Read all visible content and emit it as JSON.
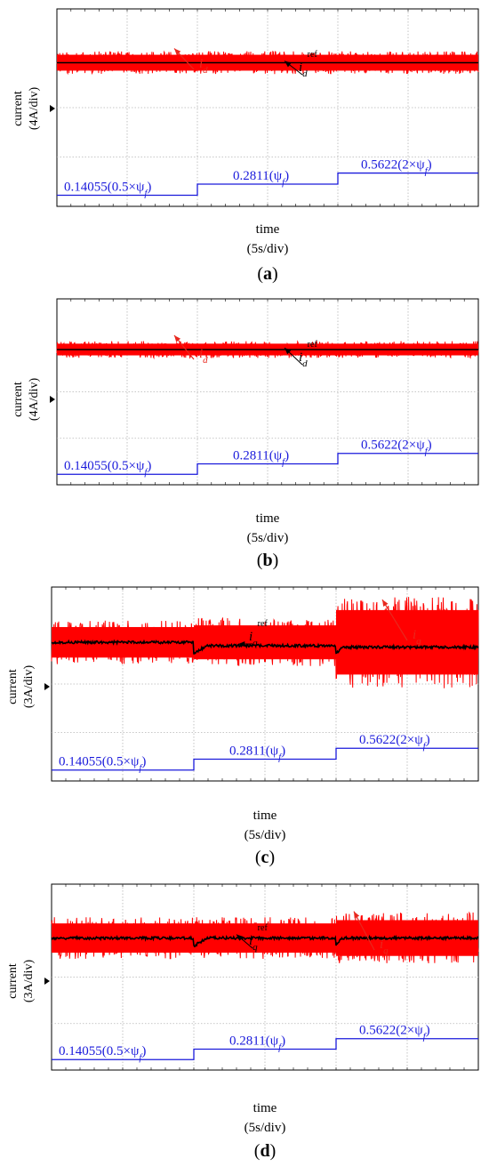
{
  "chart_data": [
    {
      "type": "line",
      "panel_label": "(a)",
      "panel_letter": "a",
      "ylabel": "current",
      "yscale": "(4A/div)",
      "xlabel": "time",
      "xscale": "(5s/div)",
      "series": [
        {
          "name": "id",
          "color": "#ff0000",
          "mean_div": 5.82,
          "noise_div": 0.23,
          "segments_noise_div": [
            0.23,
            0.23,
            0.23
          ]
        },
        {
          "name": "idref",
          "color": "#000000",
          "mean_div": 5.82,
          "dip": false
        }
      ],
      "flux_levels": [
        {
          "value": "0.14055",
          "paren": "(0.5×ψ",
          "sub": "f",
          "close": ")",
          "level_div": 0.45
        },
        {
          "value": "0.2811",
          "paren": "(ψ",
          "sub": "f",
          "close": ")",
          "level_div": 0.9
        },
        {
          "value": "0.5622",
          "paren": "(2×ψ",
          "sub": "f",
          "close": ")",
          "level_div": 1.35
        }
      ],
      "annotations": [
        {
          "text": "i",
          "sub": "d",
          "kind": "red"
        },
        {
          "text": "i",
          "sub": "d",
          "sup": "ref",
          "kind": "black"
        }
      ]
    },
    {
      "type": "line",
      "panel_label": "(b)",
      "panel_letter": "b",
      "ylabel": "current",
      "yscale": "(4A/div)",
      "xlabel": "time",
      "xscale": "(5s/div)",
      "series": [
        {
          "name": "id",
          "color": "#ff0000",
          "mean_div": 5.82,
          "noise_div": 0.18,
          "segments_noise_div": [
            0.18,
            0.18,
            0.18
          ]
        },
        {
          "name": "idref",
          "color": "#000000",
          "mean_div": 5.82,
          "dip": false
        }
      ],
      "flux_levels": [
        {
          "value": "0.14055",
          "paren": "(0.5×ψ",
          "sub": "f",
          "close": ")",
          "level_div": 0.45
        },
        {
          "value": "0.2811",
          "paren": "(ψ",
          "sub": "f",
          "close": ")",
          "level_div": 0.9
        },
        {
          "value": "0.5622",
          "paren": "(2×ψ",
          "sub": "f",
          "close": ")",
          "level_div": 1.35
        }
      ],
      "annotations": [
        {
          "text": "i",
          "sub": "d",
          "kind": "red"
        },
        {
          "text": "i",
          "sub": "d",
          "sup": "ref",
          "kind": "black"
        }
      ]
    },
    {
      "type": "line",
      "panel_label": "(c)",
      "panel_letter": "c",
      "ylabel": "current",
      "yscale": "(3A/div)",
      "xlabel": "time",
      "xscale": "(5s/div)",
      "series": [
        {
          "name": "iq",
          "color": "#ff0000",
          "mean_div": 5.72,
          "noise_div": 0.5,
          "segments_noise_div": [
            0.45,
            0.5,
            0.95
          ]
        },
        {
          "name": "iqref",
          "color": "#000000",
          "mean_div": 5.72,
          "levels_div": [
            5.72,
            5.58,
            5.52
          ],
          "dip": true
        }
      ],
      "flux_levels": [
        {
          "value": "0.14055",
          "paren": "(0.5×ψ",
          "sub": "f",
          "close": ")",
          "level_div": 0.45
        },
        {
          "value": "0.2811",
          "paren": "(ψ",
          "sub": "f",
          "close": ")",
          "level_div": 0.9
        },
        {
          "value": "0.5622",
          "paren": "(2×ψ",
          "sub": "f",
          "close": ")",
          "level_div": 1.35
        }
      ],
      "annotations": [
        {
          "text": "i",
          "sub": "q",
          "kind": "red"
        },
        {
          "text": "i",
          "sub": "q",
          "sup": "ref",
          "kind": "black"
        }
      ]
    },
    {
      "type": "line",
      "panel_label": "(d)",
      "panel_letter": "d",
      "ylabel": "current",
      "yscale": "(3A/div)",
      "xlabel": "time",
      "xscale": "(5s/div)",
      "series": [
        {
          "name": "iq",
          "color": "#ff0000",
          "mean_div": 5.68,
          "noise_div": 0.45,
          "segments_noise_div": [
            0.45,
            0.45,
            0.55
          ]
        },
        {
          "name": "iqref",
          "color": "#000000",
          "mean_div": 5.68,
          "levels_div": [
            5.68,
            5.68,
            5.68
          ],
          "dip": true
        }
      ],
      "flux_levels": [
        {
          "value": "0.14055",
          "paren": "(0.5×ψ",
          "sub": "f",
          "close": ")",
          "level_div": 0.45
        },
        {
          "value": "0.2811",
          "paren": "(ψ",
          "sub": "f",
          "close": ")",
          "level_div": 0.9
        },
        {
          "value": "0.5622",
          "paren": "(2×ψ",
          "sub": "f",
          "close": ")",
          "level_div": 1.35
        }
      ],
      "annotations": [
        {
          "text": "i",
          "sub": "q",
          "kind": "red"
        },
        {
          "text": "i",
          "sub": "q",
          "sup": "ref",
          "kind": "black"
        }
      ]
    }
  ]
}
